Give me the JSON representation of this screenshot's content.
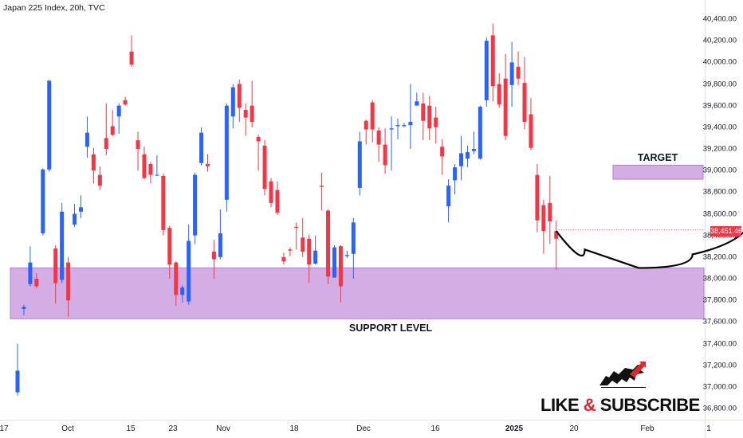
{
  "title": "Japan 225 Index, 20h, TVC",
  "price_tag": "38,451.46",
  "annotations": {
    "target": "TARGET",
    "support": "SUPPORT LEVEL"
  },
  "promo": {
    "like": "LIKE",
    "amp": "&",
    "subscribe": "SUBSCRIBE",
    "icon": "bull-silhouette-icon"
  },
  "colors": {
    "up": "#2962ff",
    "down": "#f23645",
    "zone": "#ce9fe0",
    "zone_border": "#b07ed0"
  },
  "chart_data": {
    "type": "candlestick",
    "ylim": [
      36800,
      40400
    ],
    "y_ticks": [
      "40,400.00",
      "40,200.00",
      "40,000.00",
      "39,800.00",
      "39,600.00",
      "39,400.00",
      "39,200.00",
      "39,000.00",
      "38,800.00",
      "38,600.00",
      "38,400.00",
      "38,200.00",
      "38,000.00",
      "37,800.00",
      "37,600.00",
      "37,400.00",
      "37,200.00",
      "37,000.00",
      "36,800.00"
    ],
    "x_ticks": [
      {
        "label": "17",
        "bold": false
      },
      {
        "label": "Oct",
        "bold": false
      },
      {
        "label": "15",
        "bold": false
      },
      {
        "label": "23",
        "bold": false
      },
      {
        "label": "Nov",
        "bold": false
      },
      {
        "label": "18",
        "bold": false
      },
      {
        "label": "Dec",
        "bold": false
      },
      {
        "label": "16",
        "bold": false
      },
      {
        "label": "2025",
        "bold": true
      },
      {
        "label": "20",
        "bold": false
      },
      {
        "label": "Feb",
        "bold": false
      },
      {
        "label": "1",
        "bold": false
      }
    ],
    "zones": [
      {
        "name": "support",
        "low": 37630,
        "high": 38100
      },
      {
        "name": "target",
        "low": 38920,
        "high": 39050
      }
    ],
    "projection": {
      "points": [
        [
          38440,
          0
        ],
        [
          38100,
          9
        ],
        [
          38100,
          17
        ],
        [
          38350,
          26
        ],
        [
          38880,
          36
        ]
      ]
    },
    "candles": [
      [
        36950,
        37150,
        36920,
        37400
      ],
      [
        37720,
        37740,
        37660,
        37760
      ],
      [
        37950,
        38150,
        37930,
        38300
      ],
      [
        38000,
        37930,
        37910,
        38050
      ],
      [
        38420,
        39010,
        38400,
        39020
      ],
      [
        39010,
        39830,
        38990,
        39840
      ],
      [
        38280,
        37960,
        37770,
        38310
      ],
      [
        37990,
        38620,
        37960,
        38700
      ],
      [
        38150,
        37800,
        37650,
        38200
      ],
      [
        38500,
        38600,
        38480,
        38690
      ],
      [
        38620,
        38660,
        38560,
        38770
      ],
      [
        39220,
        39350,
        39120,
        39500
      ],
      [
        39150,
        39000,
        38880,
        39210
      ],
      [
        38960,
        38860,
        38820,
        39040
      ],
      [
        39300,
        39200,
        39140,
        39620
      ],
      [
        39410,
        39330,
        39320,
        39560
      ],
      [
        39500,
        39600,
        39340,
        39620
      ],
      [
        39650,
        39610,
        39600,
        39680
      ],
      [
        40100,
        39980,
        39960,
        40250
      ],
      [
        39280,
        39200,
        39000,
        39360
      ],
      [
        39150,
        38930,
        38920,
        39220
      ],
      [
        39060,
        38960,
        38880,
        39080
      ],
      [
        38960,
        38960,
        38950,
        39140
      ],
      [
        38950,
        38450,
        38400,
        38970
      ],
      [
        38470,
        38130,
        38000,
        38490
      ],
      [
        38150,
        37850,
        37750,
        38160
      ],
      [
        37850,
        37920,
        37780,
        37940
      ],
      [
        37790,
        38350,
        37760,
        38500
      ],
      [
        38400,
        38960,
        38320,
        38980
      ],
      [
        39070,
        39350,
        39050,
        39400
      ],
      [
        39060,
        39040,
        38990,
        39150
      ],
      [
        38250,
        38180,
        38000,
        38360
      ],
      [
        38200,
        38420,
        38180,
        38640
      ],
      [
        38730,
        39600,
        38620,
        39620
      ],
      [
        39500,
        39770,
        39390,
        39800
      ],
      [
        39800,
        39580,
        39450,
        39840
      ],
      [
        39560,
        39490,
        39320,
        39620
      ],
      [
        39600,
        39450,
        39400,
        39830
      ],
      [
        39310,
        39270,
        39000,
        39330
      ],
      [
        39230,
        38830,
        38770,
        39280
      ],
      [
        38900,
        38700,
        38660,
        38930
      ],
      [
        38820,
        38610,
        38590,
        38900
      ],
      [
        38200,
        38160,
        38130,
        38240
      ],
      [
        38270,
        38260,
        38210,
        38290
      ],
      [
        38480,
        38470,
        38270,
        38520
      ],
      [
        38380,
        38250,
        38200,
        38560
      ],
      [
        38370,
        38130,
        37960,
        38410
      ],
      [
        38140,
        38260,
        38130,
        38400
      ],
      [
        38860,
        38850,
        38630,
        38980
      ],
      [
        38630,
        38020,
        37950,
        38640
      ],
      [
        38010,
        38290,
        38010,
        38310
      ],
      [
        38300,
        37930,
        37780,
        38310
      ],
      [
        38210,
        38220,
        38190,
        38260
      ],
      [
        38230,
        38520,
        38000,
        38560
      ],
      [
        38840,
        39270,
        38770,
        39360
      ],
      [
        39460,
        39380,
        39240,
        39470
      ],
      [
        39630,
        39380,
        39260,
        39650
      ],
      [
        39370,
        39240,
        39080,
        39400
      ],
      [
        39240,
        39050,
        38970,
        39390
      ],
      [
        39380,
        39390,
        39000,
        39500
      ],
      [
        39410,
        39420,
        39290,
        39480
      ],
      [
        39410,
        39420,
        39400,
        39440
      ],
      [
        39420,
        39450,
        39200,
        39800
      ],
      [
        39600,
        39640,
        39620,
        39720
      ],
      [
        39620,
        39460,
        39280,
        39720
      ],
      [
        39600,
        39390,
        39280,
        39690
      ],
      [
        39490,
        39400,
        39250,
        39590
      ],
      [
        39220,
        39130,
        38960,
        39290
      ],
      [
        38670,
        38860,
        38520,
        38920
      ],
      [
        38910,
        39030,
        38780,
        39060
      ],
      [
        39040,
        39160,
        38910,
        39320
      ],
      [
        39110,
        39170,
        39030,
        39230
      ],
      [
        39180,
        39200,
        39150,
        39360
      ],
      [
        39110,
        39590,
        39100,
        39600
      ],
      [
        39650,
        40200,
        39590,
        40230
      ],
      [
        40250,
        39780,
        39640,
        40360
      ],
      [
        39800,
        39610,
        39580,
        39900
      ],
      [
        39850,
        39320,
        39280,
        40080
      ],
      [
        39790,
        40000,
        39590,
        40190
      ],
      [
        39960,
        39850,
        39790,
        40100
      ],
      [
        39810,
        39450,
        39380,
        40050
      ],
      [
        39520,
        39210,
        39190,
        39670
      ],
      [
        38960,
        38540,
        38430,
        39060
      ],
      [
        38680,
        38440,
        38230,
        38730
      ],
      [
        38700,
        38530,
        38320,
        38950
      ],
      [
        38440,
        38370,
        38080,
        38540
      ]
    ]
  }
}
